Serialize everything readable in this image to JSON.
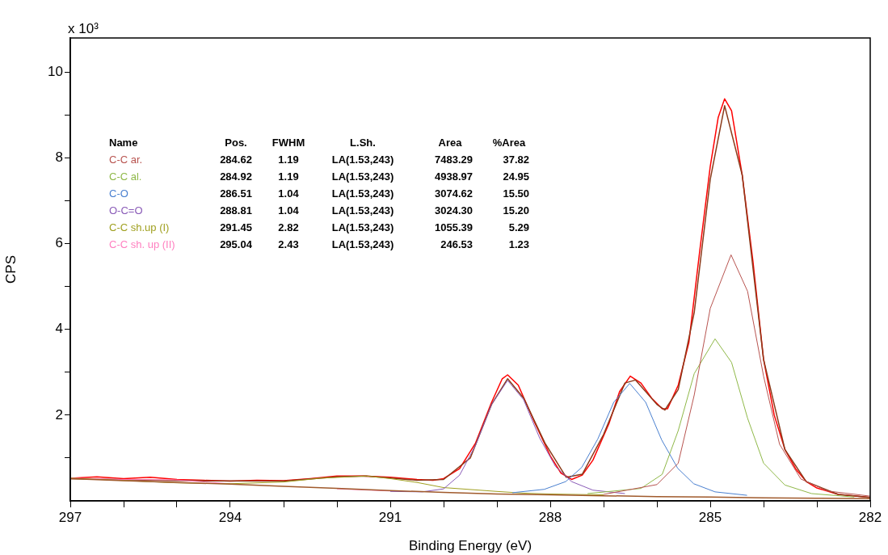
{
  "chart_data": {
    "type": "line",
    "xlabel": "Binding Energy (eV)",
    "ylabel": "CPS",
    "annotations": [
      "x 10³",
      "Name",
      "Pos.",
      "FWHM",
      "L.Sh.",
      "Area",
      "%Area",
      "284.62",
      "1.19",
      "LA(1.53,243)",
      "7483.29",
      "37.82",
      "284.92",
      "1.19",
      "LA(1.53,243)",
      "4938.97",
      "24.95",
      "286.51",
      "1.04",
      "LA(1.53,243)",
      "3074.62",
      "15.50",
      "288.81",
      "1.04",
      "LA(1.53,243)",
      "3024.30",
      "15.20",
      "291.45",
      "2.82",
      "LA(1.53,243)",
      "1055.39",
      "5.29",
      "295.04",
      "2.43",
      "LA(1.53,243)",
      "246.53",
      "1.23"
    ],
    "xlim": [
      297,
      282
    ],
    "xticks": [
      297,
      {
        "value": 296,
        "label": null
      },
      {
        "value": 295,
        "label": null
      },
      294,
      {
        "value": 293,
        "label": null
      },
      {
        "value": 292,
        "label": null
      },
      291,
      {
        "value": 290,
        "label": null
      },
      {
        "value": 289,
        "label": null
      },
      288,
      {
        "value": 287,
        "label": null
      },
      {
        "value": 286,
        "label": null
      },
      285,
      {
        "value": 284,
        "label": null
      },
      {
        "value": 283,
        "label": null
      },
      282
    ],
    "ylim": [
      0,
      10.8
    ],
    "yticks": [
      {
        "value": 1,
        "label": null
      },
      2,
      {
        "value": 3,
        "label": null
      },
      4,
      {
        "value": 5,
        "label": null
      },
      6,
      {
        "value": 7,
        "label": null
      },
      8,
      {
        "value": 9,
        "label": null
      },
      10
    ],
    "grid": false,
    "legend": false,
    "marker": "none",
    "series": [
      {
        "color": "#a05a2c",
        "x": [
          297,
          296,
          295,
          294,
          293,
          292,
          291,
          290,
          289,
          288,
          287,
          286,
          285,
          284,
          283,
          282
        ],
        "values": [
          0.52,
          0.47,
          0.43,
          0.39,
          0.34,
          0.29,
          0.24,
          0.2,
          0.16,
          0.14,
          0.12,
          0.1,
          0.09,
          0.07,
          0.06,
          0.05
        ]
      },
      {
        "name": "C-C ar.",
        "color": "#b85450",
        "x": [
          287,
          286,
          285.6,
          285.3,
          285,
          284.61,
          284.3,
          284,
          283.7,
          283.3,
          282.8,
          282
        ],
        "values": [
          0.15,
          0.38,
          0.88,
          2.47,
          4.49,
          5.74,
          4.89,
          2.91,
          1.32,
          0.51,
          0.23,
          0.11
        ]
      },
      {
        "name": "C-C al.",
        "color": "#8fb848",
        "x": [
          287.3,
          286.3,
          285.9,
          285.6,
          285.3,
          284.91,
          284.6,
          284.3,
          284,
          283.6,
          283.1,
          282.3
        ],
        "values": [
          0.17,
          0.29,
          0.62,
          1.64,
          2.97,
          3.78,
          3.23,
          1.93,
          0.88,
          0.37,
          0.17,
          0.09
        ]
      },
      {
        "name": "C-O",
        "color": "#4a80d0",
        "x": [
          288.71,
          288.11,
          287.71,
          287.41,
          287.11,
          286.81,
          286.51,
          286.21,
          285.91,
          285.61,
          285.31,
          284.91,
          284.31
        ],
        "values": [
          0.19,
          0.27,
          0.45,
          0.78,
          1.44,
          2.3,
          2.74,
          2.3,
          1.42,
          0.76,
          0.4,
          0.21,
          0.13
        ]
      },
      {
        "name": "O-C=O",
        "color": "#8a5cb8",
        "x": [
          291,
          290.4,
          290,
          289.7,
          289.4,
          289.1,
          288.8,
          288.5,
          288.2,
          287.9,
          287.6,
          287.2,
          286.6
        ],
        "values": [
          0.22,
          0.21,
          0.28,
          0.6,
          1.3,
          2.25,
          2.81,
          2.36,
          1.47,
          0.8,
          0.45,
          0.25,
          0.17
        ]
      },
      {
        "name": "C-C sh.up (I)",
        "color": "#a0a020",
        "x": [
          297,
          295,
          294,
          293,
          292.3,
          291.45,
          291,
          290.5,
          290,
          289,
          288.5,
          288,
          287
        ],
        "values": [
          0.53,
          0.42,
          0.4,
          0.44,
          0.53,
          0.58,
          0.52,
          0.43,
          0.31,
          0.22,
          0.18,
          0.16,
          0.14
        ]
      },
      {
        "name": "C-C sh. up (II)",
        "color": "#ff80c0",
        "x": [
          297,
          296,
          295.04,
          294,
          293,
          292,
          291
        ],
        "values": [
          0.53,
          0.5,
          0.49,
          0.4,
          null,
          0.28,
          0.23
        ]
      },
      {
        "color": "#8b3a1a",
        "x": [
          297,
          295,
          293,
          292,
          291.45,
          290.5,
          290,
          289.5,
          289.1,
          288.8,
          288.5,
          288.1,
          287.7,
          287.4,
          287,
          286.6,
          286.4,
          286,
          285.85,
          285.6,
          285.3,
          285,
          284.73,
          284.4,
          284,
          283.6,
          283.2,
          282.6,
          282
        ],
        "values": [
          0.52,
          0.47,
          0.46,
          0.56,
          0.58,
          0.48,
          0.5,
          1,
          2.25,
          2.85,
          2.4,
          1.35,
          0.55,
          0.62,
          1.55,
          2.75,
          2.82,
          2.25,
          2.12,
          2.6,
          4.4,
          7.5,
          9.22,
          7.6,
          3.3,
          1.2,
          0.45,
          0.15,
          0.08
        ]
      },
      {
        "color": "#ff0000",
        "x": [
          297,
          296.5,
          296,
          295.5,
          295,
          294.5,
          294,
          293.5,
          293,
          292.5,
          292,
          291.5,
          291,
          290.5,
          290.2,
          290,
          289.7,
          289.4,
          289.1,
          288.9,
          288.8,
          288.6,
          288.3,
          288,
          287.8,
          287.6,
          287.4,
          287.2,
          286.9,
          286.7,
          286.5,
          286.3,
          286.1,
          285.9,
          285.8,
          285.6,
          285.4,
          285.2,
          285,
          284.85,
          284.73,
          284.6,
          284.4,
          284.2,
          284,
          283.8,
          283.6,
          283.4,
          283.2,
          283,
          282.6,
          282
        ],
        "values": [
          0.53,
          0.56,
          0.52,
          0.55,
          0.5,
          0.48,
          0.46,
          0.48,
          0.47,
          0.52,
          0.58,
          0.58,
          0.55,
          0.5,
          0.48,
          0.52,
          0.75,
          1.35,
          2.3,
          2.85,
          2.94,
          2.7,
          1.85,
          1.05,
          0.65,
          0.5,
          0.6,
          0.95,
          1.8,
          2.55,
          2.91,
          2.75,
          2.4,
          2.15,
          2.15,
          2.7,
          3.7,
          5.8,
          7.8,
          8.95,
          9.38,
          9.1,
          7.6,
          5.6,
          3.3,
          2,
          1.2,
          0.75,
          0.45,
          0.3,
          0.15,
          0.08
        ]
      }
    ]
  }
}
